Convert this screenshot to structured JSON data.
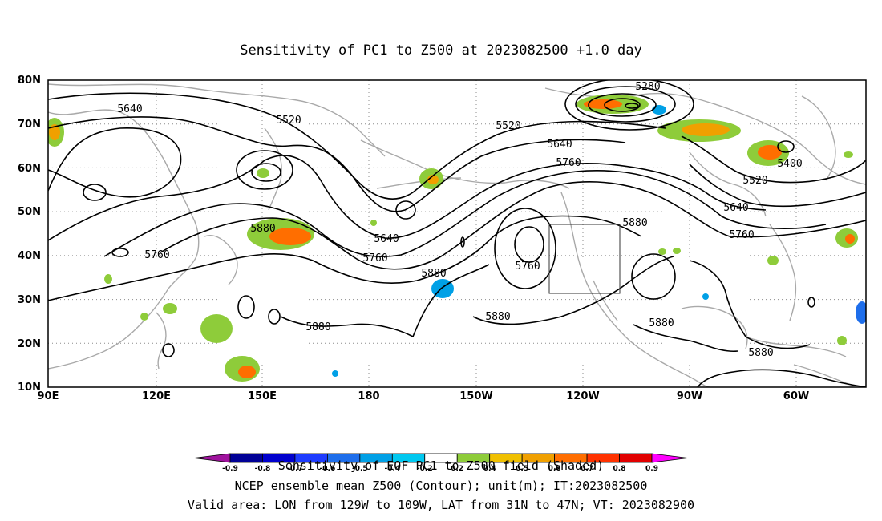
{
  "title": "Sensitivity of PC1 to Z500 at 2023082500 +1.0 day",
  "map": {
    "lon_range": [
      "90E",
      "40W"
    ],
    "lat_range": [
      "10N",
      "80N"
    ],
    "lat_labels": [
      "80N",
      "70N",
      "60N",
      "50N",
      "40N",
      "30N",
      "20N",
      "10N"
    ],
    "lon_labels": [
      "90E",
      "120E",
      "150E",
      "180",
      "150W",
      "120W",
      "90W",
      "60W"
    ],
    "contour_labels": [
      "5280",
      "5400",
      "5520",
      "5520",
      "5520",
      "5640",
      "5640",
      "5640",
      "5640",
      "5760",
      "5760",
      "5760",
      "5760",
      "5760",
      "5880",
      "5880",
      "5880",
      "5880",
      "5880",
      "5880",
      "5880"
    ],
    "valid_box": {
      "lon": [
        "129W",
        "109W"
      ],
      "lat": [
        "31N",
        "47N"
      ]
    },
    "colors": {
      "contour": "#000000",
      "coastline": "#a9a9a9",
      "grid": "#8c8c8c"
    }
  },
  "colorbar": {
    "labels": [
      "-0.9",
      "-0.8",
      "-0.7",
      "-0.6",
      "-0.5",
      "-0.4",
      "-0.2",
      "0.2",
      "0.4",
      "0.5",
      "0.6",
      "0.7",
      "0.8",
      "0.9"
    ],
    "colors": [
      "#a0139e",
      "#000096",
      "#0000cd",
      "#1e3cff",
      "#1e6eeb",
      "#00a0e6",
      "#00c8f0",
      "#ffffff",
      "#8ecc3a",
      "#f0c000",
      "#f0a000",
      "#ff6e00",
      "#ff3200",
      "#e10000",
      "#ff00ff"
    ]
  },
  "footer": {
    "line1": "Sensitivity of EOF PC1 to Z500 field (Shaded)",
    "line2": "NCEP ensemble mean Z500 (Contour); unit(m); IT:2023082500",
    "line3": "Valid area: LON from 129W to 109W, LAT from 31N to 47N; VT: 2023082900"
  }
}
